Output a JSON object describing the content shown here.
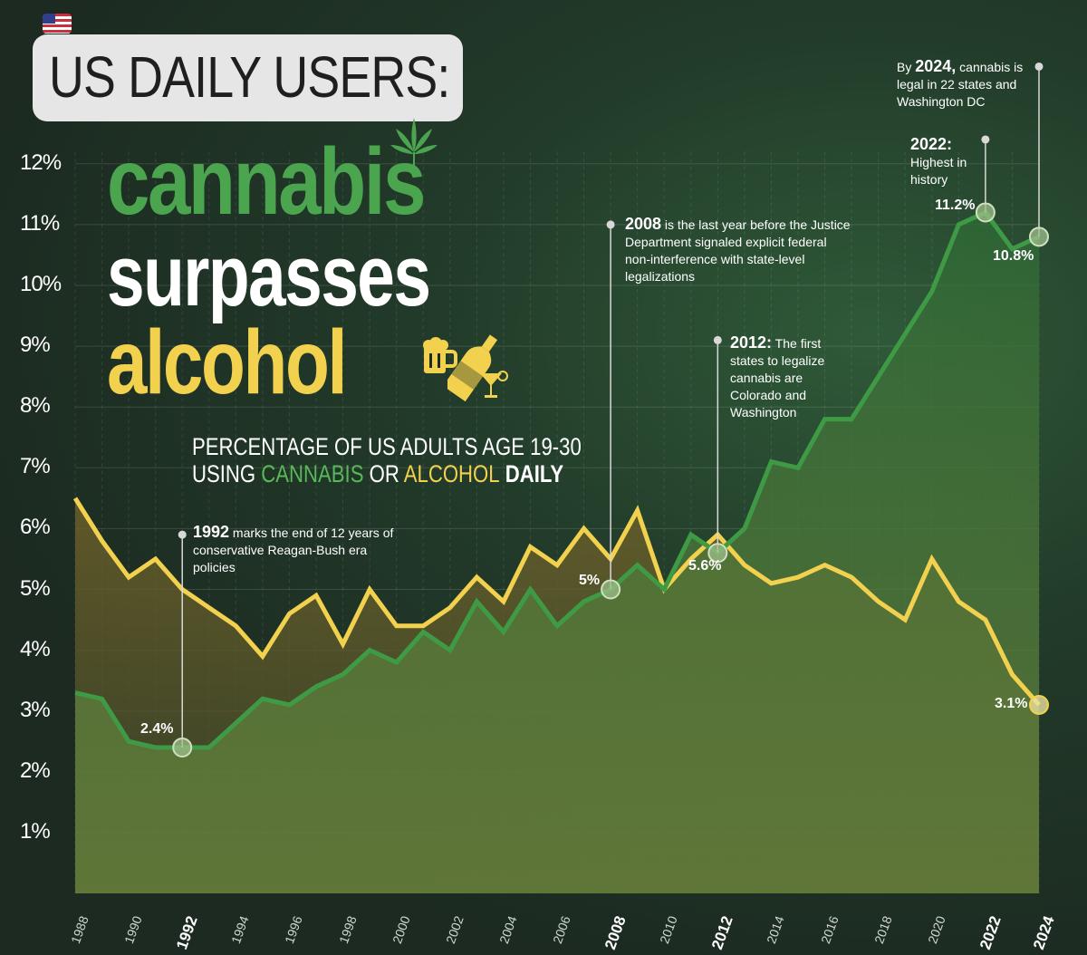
{
  "title": "US DAILY USERS:",
  "headline": {
    "word1": "cannabis",
    "word2": "surpasses",
    "word3": "alcohol"
  },
  "subtitle": {
    "line1": "PERCENTAGE OF US ADULTS AGE 19-30",
    "line2_a": "USING ",
    "line2_b": "CANNABIS",
    "line2_c": " OR ",
    "line2_d": "ALCOHOL",
    "line2_e": " DAILY"
  },
  "annotations": {
    "a1992_year": "1992",
    "a1992_text": " marks the end of 12 years of conservative Reagan-Bush era policies",
    "a2008_year": "2008",
    "a2008_text": " is the last year before the Justice Department signaled explicit federal non-interference with state-level legalizations",
    "a2012_year": "2012:",
    "a2012_text": " The first states to legalize cannabis are Colorado and Washington",
    "a2022_year": "2022:",
    "a2022_text": "Highest in history",
    "a2024_pre": "By ",
    "a2024_year": "2024,",
    "a2024_text": " cannabis is legal in 22 states and Washington DC"
  },
  "value_labels": {
    "v1992": "2.4%",
    "v2008": "5%",
    "v2012": "5.6%",
    "v2022": "11.2%",
    "v2024_c": "10.8%",
    "v2024_a": "3.1%"
  },
  "colors": {
    "cannabis": "#4aa54e",
    "alcohol": "#f2d14e",
    "background": "#1d2a22"
  },
  "icons": [
    "us-flag-icon",
    "cannabis-leaf-icon",
    "beer-mug-icon",
    "wine-bottle-icon",
    "cocktail-glass-icon"
  ],
  "chart_data": {
    "type": "area",
    "title": "US DAILY USERS: cannabis surpasses alcohol",
    "x": [
      1988,
      1989,
      1990,
      1991,
      1992,
      1993,
      1994,
      1995,
      1996,
      1997,
      1998,
      1999,
      2000,
      2001,
      2002,
      2003,
      2004,
      2005,
      2006,
      2007,
      2008,
      2009,
      2010,
      2011,
      2012,
      2013,
      2014,
      2015,
      2016,
      2017,
      2018,
      2019,
      2020,
      2021,
      2022,
      2023,
      2024
    ],
    "x_tick_labels": [
      "1988",
      "1990",
      "1992",
      "1994",
      "1996",
      "1998",
      "2000",
      "2002",
      "2004",
      "2006",
      "2008",
      "2010",
      "2012",
      "2014",
      "2016",
      "2018",
      "2020",
      "2022",
      "2024"
    ],
    "x_tick_major": [
      "1992",
      "2008",
      "2012",
      "2022",
      "2024"
    ],
    "y_tick_labels": [
      "1%",
      "2%",
      "3%",
      "4%",
      "5%",
      "6%",
      "7%",
      "8%",
      "9%",
      "10%",
      "11%",
      "12%"
    ],
    "ylim": [
      0,
      12.6
    ],
    "series": [
      {
        "name": "CANNABIS",
        "values": [
          3.3,
          3.2,
          2.5,
          2.4,
          2.4,
          2.4,
          2.8,
          3.2,
          3.1,
          3.4,
          3.6,
          4.0,
          3.8,
          4.3,
          4.0,
          4.8,
          4.3,
          5.0,
          4.4,
          4.8,
          5.0,
          5.4,
          5.0,
          5.9,
          5.6,
          6.0,
          7.1,
          7.0,
          7.8,
          7.8,
          8.5,
          9.2,
          9.9,
          11.0,
          11.2,
          10.6,
          10.8
        ]
      },
      {
        "name": "ALCOHOL",
        "values": [
          6.5,
          5.8,
          5.2,
          5.5,
          5.0,
          4.7,
          4.4,
          3.9,
          4.6,
          4.9,
          4.1,
          5.0,
          4.4,
          4.4,
          4.7,
          5.2,
          4.8,
          5.7,
          5.4,
          6.0,
          5.5,
          6.3,
          5.0,
          5.5,
          5.9,
          5.4,
          5.1,
          5.2,
          5.4,
          5.2,
          4.8,
          4.5,
          5.5,
          4.8,
          4.5,
          3.6,
          3.1
        ]
      }
    ],
    "grid": true,
    "legend": "in subtitle"
  }
}
